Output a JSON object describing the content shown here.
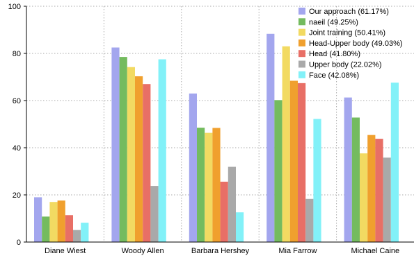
{
  "chart_data": {
    "type": "bar",
    "title": "",
    "xlabel": "",
    "ylabel": "",
    "ylim": [
      0,
      100
    ],
    "yticks": [
      0,
      20,
      40,
      60,
      80,
      100
    ],
    "grid": true,
    "legend_position": "top-right",
    "categories": [
      "Diane Wiest",
      "Woody Allen",
      "Barbara Hershey",
      "Mia Farrow",
      "Michael Caine"
    ],
    "series": [
      {
        "name": "Our approach (61.17%)",
        "color": "#a3a6ee",
        "values": [
          19,
          82.5,
          63,
          88.3,
          61.3
        ]
      },
      {
        "name": "naeil (49.25%)",
        "color": "#74bb5f",
        "values": [
          10.8,
          78.5,
          48.5,
          60.2,
          52.8
        ]
      },
      {
        "name": "Joint training (50.41%)",
        "color": "#f2da62",
        "values": [
          17,
          74.2,
          46.3,
          83,
          37.6
        ]
      },
      {
        "name": "Head-Upper body (49.03%)",
        "color": "#f0a02e",
        "values": [
          17.6,
          70.3,
          48.4,
          68.4,
          45.4
        ]
      },
      {
        "name": "Head (41.80%)",
        "color": "#e86f66",
        "values": [
          11.4,
          67,
          25.6,
          67.4,
          43.8
        ]
      },
      {
        "name": "Upper body (22.02%)",
        "color": "#a9a9a9",
        "values": [
          5.1,
          23.8,
          31.9,
          18.3,
          35.8
        ]
      },
      {
        "name": "Face (42.08%)",
        "color": "#82f1f8",
        "values": [
          8.2,
          77.5,
          12.6,
          52.2,
          67.6
        ]
      }
    ]
  }
}
